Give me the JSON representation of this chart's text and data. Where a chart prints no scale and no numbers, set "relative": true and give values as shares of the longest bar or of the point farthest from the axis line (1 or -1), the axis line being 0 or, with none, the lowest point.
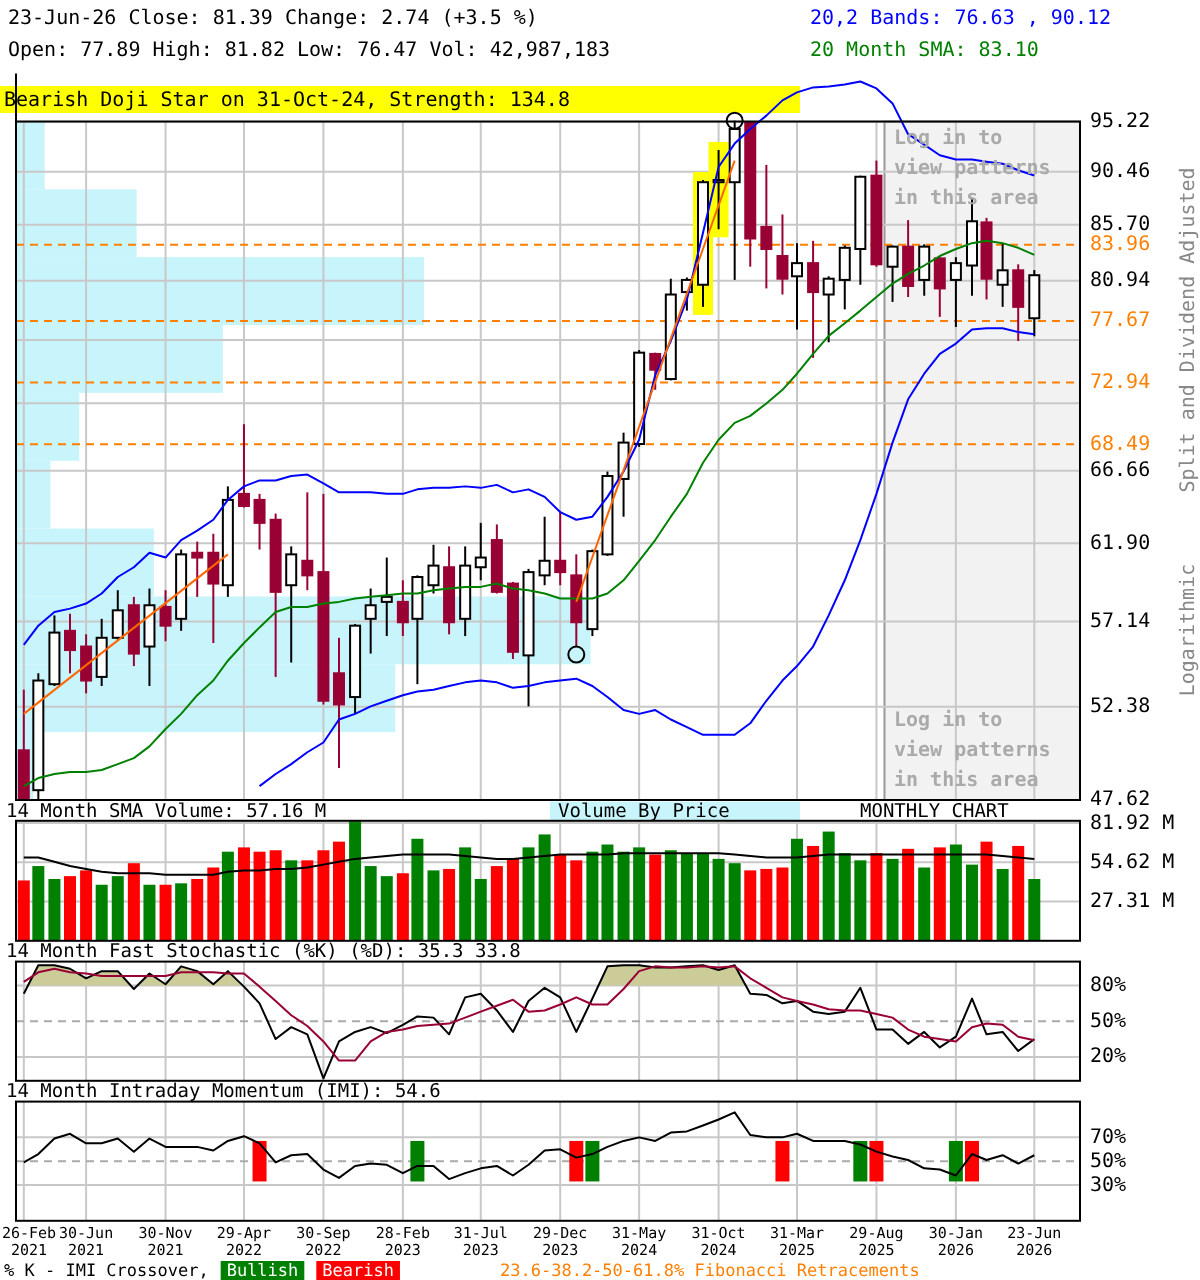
{
  "chart_data": [
    {
      "type": "candlestick",
      "title": "23-Jun-26    Close: 81.39    Change: 2.74 (+3.5 %)",
      "subtitle": "Open: 77.89    High: 81.82    Low: 76.47    Vol: 42,987,183",
      "x": [
        "2021-02",
        "2021-03",
        "2021-04",
        "2021-05",
        "2021-06",
        "2021-07",
        "2021-08",
        "2021-09",
        "2021-10",
        "2021-11",
        "2021-12",
        "2022-01",
        "2022-02",
        "2022-03",
        "2022-04",
        "2022-05",
        "2022-06",
        "2022-07",
        "2022-08",
        "2022-09",
        "2022-10",
        "2022-11",
        "2022-12",
        "2023-01",
        "2023-02",
        "2023-03",
        "2023-04",
        "2023-05",
        "2023-06",
        "2023-07",
        "2023-08",
        "2023-09",
        "2023-10",
        "2023-11",
        "2023-12",
        "2024-01",
        "2024-02",
        "2024-03",
        "2024-04",
        "2024-05",
        "2024-06",
        "2024-07",
        "2024-08",
        "2024-09",
        "2024-10",
        "2024-11",
        "2024-12",
        "2025-01",
        "2025-02",
        "2025-03",
        "2025-04",
        "2025-05",
        "2025-06",
        "2025-07",
        "2025-08",
        "2025-09",
        "2025-10",
        "2025-11",
        "2025-12",
        "2026-01",
        "2026-02",
        "2026-03",
        "2026-04",
        "2026-05",
        "2026-06"
      ],
      "ohlc": [
        [
          50.1,
          53.3,
          47.62,
          47.7
        ],
        [
          48.1,
          54.2,
          47.62,
          53.8
        ],
        [
          53.6,
          57.5,
          53.5,
          56.5
        ],
        [
          56.6,
          57.6,
          54.2,
          55.5
        ],
        [
          55.7,
          56.4,
          53.1,
          53.8
        ],
        [
          54.0,
          57.3,
          53.5,
          56.2
        ],
        [
          56.2,
          59.0,
          56.1,
          57.8
        ],
        [
          58.1,
          58.6,
          54.6,
          55.3
        ],
        [
          55.7,
          59.1,
          53.5,
          58.1
        ],
        [
          58.0,
          59.0,
          56.0,
          56.9
        ],
        [
          57.3,
          61.5,
          56.6,
          61.2
        ],
        [
          61.3,
          62.0,
          58.6,
          61.0
        ],
        [
          61.3,
          62.5,
          55.9,
          59.4
        ],
        [
          59.3,
          65.6,
          58.6,
          64.7
        ],
        [
          65.1,
          69.9,
          64.2,
          64.3
        ],
        [
          64.7,
          65.1,
          61.5,
          63.2
        ],
        [
          63.4,
          63.8,
          54.0,
          58.9
        ],
        [
          59.3,
          61.7,
          54.8,
          61.2
        ],
        [
          60.8,
          65.2,
          59.0,
          59.9
        ],
        [
          60.1,
          65.1,
          52.5,
          52.7
        ],
        [
          54.2,
          56.2,
          49.2,
          52.5
        ],
        [
          52.9,
          57.0,
          52.0,
          56.9
        ],
        [
          57.3,
          59.1,
          55.3,
          58.1
        ],
        [
          58.3,
          61.0,
          56.3,
          58.6
        ],
        [
          58.3,
          59.6,
          56.3,
          57.1
        ],
        [
          57.3,
          59.9,
          53.6,
          59.8
        ],
        [
          59.3,
          61.8,
          58.8,
          60.5
        ],
        [
          60.4,
          61.7,
          56.4,
          57.1
        ],
        [
          57.3,
          61.7,
          56.3,
          60.5
        ],
        [
          60.4,
          63.2,
          59.6,
          61.0
        ],
        [
          62.1,
          63.1,
          58.8,
          58.9
        ],
        [
          59.4,
          59.5,
          55.0,
          55.4
        ],
        [
          55.2,
          60.3,
          52.4,
          60.1
        ],
        [
          59.9,
          63.6,
          59.3,
          60.8
        ],
        [
          60.8,
          63.9,
          59.3,
          60.1
        ],
        [
          59.9,
          61.2,
          55.7,
          57.1
        ],
        [
          56.7,
          61.5,
          56.3,
          61.4
        ],
        [
          61.2,
          66.6,
          61.1,
          66.3
        ],
        [
          66.1,
          69.3,
          63.6,
          68.6
        ],
        [
          68.5,
          75.4,
          68.3,
          75.2
        ],
        [
          75.1,
          75.2,
          72.4,
          73.9
        ],
        [
          73.2,
          81.1,
          73.1,
          79.8
        ],
        [
          80.0,
          81.2,
          78.5,
          81.0
        ],
        [
          80.6,
          89.7,
          78.8,
          89.5
        ],
        [
          89.5,
          92.5,
          85.3,
          89.7
        ],
        [
          89.5,
          95.3,
          81.0,
          94.5
        ],
        [
          95.1,
          95.2,
          82.1,
          84.5
        ],
        [
          85.5,
          91.1,
          80.3,
          83.6
        ],
        [
          83.0,
          86.6,
          79.8,
          81.1
        ],
        [
          81.3,
          84.1,
          77.0,
          82.4
        ],
        [
          82.4,
          84.3,
          74.8,
          80.0
        ],
        [
          79.8,
          81.3,
          76.0,
          81.1
        ],
        [
          81.0,
          83.9,
          78.6,
          83.7
        ],
        [
          83.6,
          90.1,
          80.6,
          90.0
        ],
        [
          90.1,
          91.5,
          82.1,
          82.3
        ],
        [
          82.1,
          83.9,
          79.2,
          83.8
        ],
        [
          83.8,
          86.1,
          79.6,
          80.5
        ],
        [
          81.0,
          84.0,
          79.7,
          83.8
        ],
        [
          82.8,
          82.9,
          78.0,
          80.3
        ],
        [
          81.0,
          82.9,
          77.2,
          82.4
        ],
        [
          82.2,
          88.1,
          79.7,
          86.0
        ],
        [
          85.9,
          86.3,
          79.4,
          81.1
        ],
        [
          80.6,
          84.1,
          78.8,
          81.8
        ],
        [
          81.8,
          82.3,
          76.1,
          78.8
        ],
        [
          77.89,
          81.82,
          76.47,
          81.39
        ]
      ],
      "series": [
        {
          "type": "line",
          "name": "20,2 Bands: 76.63 , 90.12",
          "color": "#0000ff",
          "values": [
            55.8,
            56.9,
            57.7,
            57.9,
            58.2,
            58.8,
            59.8,
            60.4,
            61.3,
            61.0,
            62.1,
            62.7,
            63.4,
            64.7,
            65.6,
            66.0,
            66.0,
            66.3,
            66.4,
            65.8,
            65.2,
            65.2,
            65.2,
            65.1,
            65.1,
            65.4,
            65.5,
            65.5,
            65.6,
            65.5,
            65.7,
            65.2,
            65.4,
            64.9,
            63.9,
            63.4,
            63.6,
            64.9,
            66.6,
            68.8,
            73.5,
            76.1,
            79.4,
            85.0,
            90.9,
            93.1,
            94.5,
            95.8,
            97.3,
            98.1,
            98.6,
            98.7,
            98.9,
            99.2,
            98.5,
            97.0,
            94.0,
            93.0,
            92.0,
            91.6,
            91.6,
            91.4,
            91.2,
            90.6,
            90.12
          ]
        },
        {
          "type": "line",
          "color": "#0000ff",
          "values": [
            null,
            null,
            null,
            null,
            null,
            null,
            null,
            null,
            null,
            null,
            null,
            null,
            null,
            null,
            null,
            48.3,
            48.9,
            49.4,
            50.0,
            50.5,
            51.7,
            52.0,
            52.4,
            52.7,
            53.0,
            53.2,
            53.3,
            53.5,
            53.7,
            53.8,
            53.7,
            53.4,
            53.5,
            53.7,
            53.8,
            53.9,
            53.5,
            52.9,
            52.2,
            52.0,
            52.2,
            51.7,
            51.3,
            50.9,
            50.9,
            50.9,
            51.5,
            52.7,
            53.8,
            54.6,
            55.7,
            57.5,
            59.6,
            62.1,
            65.1,
            68.6,
            71.7,
            73.6,
            75.1,
            75.9,
            77.0,
            77.1,
            77.1,
            76.8,
            76.63
          ]
        },
        {
          "type": "line",
          "name": "20 Month SMA: 83.10",
          "color": "#008000",
          "values": [
            48.3,
            48.7,
            48.9,
            49.0,
            49.0,
            49.1,
            49.4,
            49.7,
            50.3,
            51.2,
            52.0,
            53.0,
            53.8,
            54.9,
            55.9,
            56.8,
            57.7,
            58.0,
            58.0,
            58.2,
            58.3,
            58.5,
            58.6,
            58.7,
            58.8,
            58.8,
            59.0,
            59.1,
            59.2,
            59.2,
            59.4,
            59.1,
            59.0,
            58.8,
            58.5,
            58.5,
            58.5,
            58.8,
            59.6,
            60.8,
            62.1,
            63.6,
            65.1,
            67.2,
            68.8,
            70.0,
            70.5,
            71.4,
            72.4,
            73.6,
            75.1,
            76.5,
            77.5,
            78.5,
            79.6,
            80.7,
            81.5,
            82.2,
            83.0,
            83.6,
            84.1,
            84.3,
            84.1,
            83.7,
            83.1
          ]
        },
        {
          "type": "line",
          "color": "#ff6600",
          "x": [
            "2021-02",
            "2022-03"
          ],
          "values": [
            52.0,
            61.2
          ]
        },
        {
          "type": "line",
          "color": "#ff6600",
          "x": [
            "2024-01",
            "2024-11"
          ],
          "values": [
            58.3,
            91.5
          ]
        }
      ],
      "xlim": [
        "2021-01-17",
        "2026-08-28"
      ],
      "xticks": [
        {
          "value": "2021-02",
          "label": null
        },
        {
          "value": "2021-06",
          "label": null
        },
        {
          "value": "2021-11",
          "label": null
        },
        {
          "value": "2022-04",
          "label": null
        },
        {
          "value": "2022-09",
          "label": null
        },
        {
          "value": "2023-02",
          "label": null
        },
        {
          "value": "2023-07",
          "label": null
        },
        {
          "value": "2023-12",
          "label": null
        },
        {
          "value": "2024-05",
          "label": null
        },
        {
          "value": "2024-10",
          "label": null
        },
        {
          "value": "2025-03",
          "label": null
        },
        {
          "value": "2025-08",
          "label": null
        },
        {
          "value": "2026-01",
          "label": null
        },
        {
          "value": "2026-06",
          "label": null
        }
      ],
      "ylim": [
        47.62,
        100
      ],
      "log": true,
      "yticks": [
        47.62,
        52.38,
        57.14,
        {
          "value": 61.9,
          "label": "61.90"
        },
        66.66,
        {
          "value": 71.42,
          "label": null
        },
        {
          "value": 76.18,
          "label": null
        },
        80.94,
        {
          "value": 85.7,
          "label": "85.70"
        },
        90.46,
        95.22
      ],
      "grid": true,
      "tick_labels": "y",
      "legend": "top right",
      "ref_lines": [
        {
          "axis": "y",
          "value": 83.96,
          "label": "83.96",
          "color": "#ff8000",
          "line_style": "dashed"
        },
        {
          "axis": "y",
          "value": 77.67,
          "label": "77.67",
          "color": "#ff8000",
          "line_style": "dashed"
        },
        {
          "axis": "y",
          "value": 72.94,
          "label": "72.94",
          "color": "#ff8000",
          "line_style": "dashed"
        },
        {
          "axis": "y",
          "value": 68.49,
          "label": "68.49",
          "color": "#ff8000",
          "line_style": "dashed"
        }
      ],
      "annotations": [
        "Bearish Doji Star on 31-Oct-24, Strength: 134.8",
        "Log in to view patterns in this area",
        "Log in to view patterns in this area",
        "Split and Dividend Adjusted",
        "Logarithmic",
        "23.6-38.2-50-61.8% Fibonacci Retracements"
      ]
    },
    {
      "type": "bar",
      "title": "14 Month SMA Volume: 57.16 M",
      "x": [
        "2021-02",
        "2021-03",
        "2021-04",
        "2021-05",
        "2021-06",
        "2021-07",
        "2021-08",
        "2021-09",
        "2021-10",
        "2021-11",
        "2021-12",
        "2022-01",
        "2022-02",
        "2022-03",
        "2022-04",
        "2022-05",
        "2022-06",
        "2022-07",
        "2022-08",
        "2022-09",
        "2022-10",
        "2022-11",
        "2022-12",
        "2023-01",
        "2023-02",
        "2023-03",
        "2023-04",
        "2023-05",
        "2023-06",
        "2023-07",
        "2023-08",
        "2023-09",
        "2023-10",
        "2023-11",
        "2023-12",
        "2024-01",
        "2024-02",
        "2024-03",
        "2024-04",
        "2024-05",
        "2024-06",
        "2024-07",
        "2024-08",
        "2024-09",
        "2024-10",
        "2024-11",
        "2024-12",
        "2025-01",
        "2025-02",
        "2025-03",
        "2025-04",
        "2025-05",
        "2025-06",
        "2025-07",
        "2025-08",
        "2025-09",
        "2025-10",
        "2025-11",
        "2025-12",
        "2026-01",
        "2026-02",
        "2026-03",
        "2026-04",
        "2026-05",
        "2026-06"
      ],
      "values": [
        42,
        52,
        43,
        45,
        49,
        39,
        45,
        54,
        39,
        39,
        40,
        43,
        51,
        62,
        65,
        62,
        63,
        56,
        56,
        63,
        69,
        83,
        52,
        45,
        47,
        71,
        49,
        50,
        65,
        43,
        52,
        57,
        65,
        74,
        60,
        56,
        62,
        67,
        62,
        65,
        60,
        63,
        61,
        61,
        57,
        54,
        49,
        50,
        51,
        71,
        66,
        76,
        61,
        56,
        61,
        57,
        64,
        51,
        65,
        67,
        53,
        69,
        50,
        66,
        43
      ],
      "colors": [
        "#ff0000",
        "#008000",
        "#008000",
        "#ff0000",
        "#ff0000",
        "#008000",
        "#008000",
        "#ff0000",
        "#008000",
        "#ff0000",
        "#008000",
        "#ff0000",
        "#ff0000",
        "#008000",
        "#ff0000",
        "#ff0000",
        "#ff0000",
        "#008000",
        "#ff0000",
        "#ff0000",
        "#ff0000",
        "#008000",
        "#008000",
        "#008000",
        "#ff0000",
        "#008000",
        "#008000",
        "#ff0000",
        "#008000",
        "#008000",
        "#ff0000",
        "#ff0000",
        "#008000",
        "#008000",
        "#ff0000",
        "#ff0000",
        "#008000",
        "#008000",
        "#008000",
        "#008000",
        "#ff0000",
        "#008000",
        "#008000",
        "#008000",
        "#008000",
        "#008000",
        "#ff0000",
        "#ff0000",
        "#ff0000",
        "#008000",
        "#ff0000",
        "#008000",
        "#008000",
        "#008000",
        "#ff0000",
        "#008000",
        "#ff0000",
        "#008000",
        "#ff0000",
        "#008000",
        "#008000",
        "#ff0000",
        "#008000",
        "#ff0000",
        "#008000"
      ],
      "series": [
        {
          "type": "line",
          "color": "#000000",
          "values": [
            58,
            58,
            55,
            52,
            50,
            48,
            47,
            47,
            47,
            46,
            46,
            46,
            46,
            48,
            49,
            49,
            50,
            50,
            51,
            53,
            55,
            57,
            58,
            59,
            60,
            60,
            60,
            60,
            59,
            58,
            57,
            57,
            58,
            59,
            60,
            60,
            60,
            60,
            61,
            61,
            61,
            61,
            61,
            61,
            61,
            60,
            59,
            58,
            58,
            58,
            59,
            60,
            60,
            60,
            60,
            60,
            60,
            60,
            60,
            60,
            60,
            60,
            59,
            58,
            57
          ]
        }
      ],
      "xlim": [
        "2021-01-17",
        "2026-08-28"
      ],
      "xticks": [
        {
          "value": "2021-02",
          "label": null
        },
        {
          "value": "2021-06",
          "label": null
        },
        {
          "value": "2021-11",
          "label": null
        },
        {
          "value": "2022-04",
          "label": null
        },
        {
          "value": "2022-09",
          "label": null
        },
        {
          "value": "2023-02",
          "label": null
        },
        {
          "value": "2023-07",
          "label": null
        },
        {
          "value": "2023-12",
          "label": null
        },
        {
          "value": "2024-05",
          "label": null
        },
        {
          "value": "2024-10",
          "label": null
        },
        {
          "value": "2025-03",
          "label": null
        },
        {
          "value": "2025-08",
          "label": null
        },
        {
          "value": "2026-01",
          "label": null
        },
        {
          "value": "2026-06",
          "label": null
        }
      ],
      "ylim": [
        0,
        83.5
      ],
      "yticks": [
        {
          "value": 27.31,
          "label": "27.31 M"
        },
        {
          "value": 54.62,
          "label": "54.62 M"
        },
        {
          "value": 81.92,
          "label": "81.92 M"
        }
      ],
      "grid": true,
      "tick_labels": "y",
      "annotations": [
        "Volume By Price",
        "MONTHLY CHART"
      ]
    },
    {
      "type": "line",
      "title": "14 Month Fast Stochastic (%K) (%D): 35.3  33.8",
      "x": [
        "2021-02",
        "2021-03",
        "2021-04",
        "2021-05",
        "2021-06",
        "2021-07",
        "2021-08",
        "2021-09",
        "2021-10",
        "2021-11",
        "2021-12",
        "2022-01",
        "2022-02",
        "2022-03",
        "2022-04",
        "2022-05",
        "2022-06",
        "2022-07",
        "2022-08",
        "2022-09",
        "2022-10",
        "2022-11",
        "2022-12",
        "2023-01",
        "2023-02",
        "2023-03",
        "2023-04",
        "2023-05",
        "2023-06",
        "2023-07",
        "2023-08",
        "2023-09",
        "2023-10",
        "2023-11",
        "2023-12",
        "2024-01",
        "2024-02",
        "2024-03",
        "2024-04",
        "2024-05",
        "2024-06",
        "2024-07",
        "2024-08",
        "2024-09",
        "2024-10",
        "2024-11",
        "2024-12",
        "2025-01",
        "2025-02",
        "2025-03",
        "2025-04",
        "2025-05",
        "2025-06",
        "2025-07",
        "2025-08",
        "2025-09",
        "2025-10",
        "2025-11",
        "2025-12",
        "2026-01",
        "2026-02",
        "2026-03",
        "2026-04",
        "2026-05",
        "2026-06"
      ],
      "series": [
        {
          "color": "#000000",
          "values": [
            73,
            97,
            97,
            94,
            86,
            92,
            92,
            77,
            90,
            81,
            96,
            92,
            81,
            92,
            79,
            65,
            35,
            45,
            39,
            2,
            33,
            41,
            45,
            40,
            47,
            54,
            53,
            39,
            70,
            73,
            59,
            41,
            67,
            78,
            70,
            41,
            69,
            96,
            97,
            97,
            95,
            95,
            96,
            97,
            93,
            97,
            73,
            72,
            65,
            67,
            58,
            56,
            58,
            78,
            43,
            43,
            31,
            41,
            28,
            37,
            69,
            39,
            41,
            25,
            35
          ]
        },
        {
          "color": "#990033",
          "values": [
            83,
            91,
            94,
            91,
            90,
            88,
            88,
            88,
            88,
            88,
            91,
            91,
            91,
            90,
            90,
            79,
            67,
            55,
            46,
            33,
            17,
            17,
            33,
            41,
            43,
            46,
            47,
            48,
            53,
            58,
            63,
            68,
            58,
            59,
            64,
            70,
            64,
            64,
            77,
            92,
            96,
            95,
            95,
            96,
            95,
            96,
            86,
            78,
            70,
            67,
            64,
            60,
            59,
            59,
            56,
            53,
            43,
            37,
            35,
            33,
            45,
            48,
            47,
            37,
            34
          ]
        }
      ],
      "xlim": [
        "2021-01-17",
        "2026-08-28"
      ],
      "xticks": [
        {
          "value": "2021-02",
          "label": null
        },
        {
          "value": "2021-06",
          "label": null
        },
        {
          "value": "2021-11",
          "label": null
        },
        {
          "value": "2022-04",
          "label": null
        },
        {
          "value": "2022-09",
          "label": null
        },
        {
          "value": "2023-02",
          "label": null
        },
        {
          "value": "2023-07",
          "label": null
        },
        {
          "value": "2023-12",
          "label": null
        },
        {
          "value": "2024-05",
          "label": null
        },
        {
          "value": "2024-10",
          "label": null
        },
        {
          "value": "2025-03",
          "label": null
        },
        {
          "value": "2025-08",
          "label": null
        },
        {
          "value": "2026-01",
          "label": null
        },
        {
          "value": "2026-06",
          "label": null
        }
      ],
      "ylim": [
        0,
        100
      ],
      "yticks": [
        {
          "value": 20,
          "label": "20%"
        },
        {
          "value": 50,
          "label": "50%"
        },
        {
          "value": 80,
          "label": "80%"
        }
      ],
      "grid": true,
      "tick_labels": "y",
      "ref_lines": [
        {
          "axis": "y",
          "value": 50,
          "color": "#aaaaaa",
          "line_style": "dashed"
        }
      ],
      "bands": [
        {
          "axis": "y",
          "from": 80,
          "to": 100,
          "color": "#cccc99"
        }
      ]
    },
    {
      "type": "line",
      "title": "14 Month Intraday Momentum (IMI): 54.6",
      "legend_title": "% K - IMI Crossover,",
      "x": [
        "2021-02",
        "2021-03",
        "2021-04",
        "2021-05",
        "2021-06",
        "2021-07",
        "2021-08",
        "2021-09",
        "2021-10",
        "2021-11",
        "2021-12",
        "2022-01",
        "2022-02",
        "2022-03",
        "2022-04",
        "2022-05",
        "2022-06",
        "2022-07",
        "2022-08",
        "2022-09",
        "2022-10",
        "2022-11",
        "2022-12",
        "2023-01",
        "2023-02",
        "2023-03",
        "2023-04",
        "2023-05",
        "2023-06",
        "2023-07",
        "2023-08",
        "2023-09",
        "2023-10",
        "2023-11",
        "2023-12",
        "2024-01",
        "2024-02",
        "2024-03",
        "2024-04",
        "2024-05",
        "2024-06",
        "2024-07",
        "2024-08",
        "2024-09",
        "2024-10",
        "2024-11",
        "2024-12",
        "2025-01",
        "2025-02",
        "2025-03",
        "2025-04",
        "2025-05",
        "2025-06",
        "2025-07",
        "2025-08",
        "2025-09",
        "2025-10",
        "2025-11",
        "2025-12",
        "2026-01",
        "2026-02",
        "2026-03",
        "2026-04",
        "2026-05",
        "2026-06"
      ],
      "series": [
        {
          "type": "bar",
          "name": "Bullish",
          "color": "#008000",
          "x": [
            "2023-03",
            "2024-02",
            "2025-07",
            "2026-01"
          ],
          "base": [
            33,
            33,
            33,
            33
          ],
          "values": [
            34,
            34,
            34,
            34
          ]
        },
        {
          "type": "bar",
          "name": "Bearish",
          "color": "#ff0000",
          "x": [
            "2022-05",
            "2024-01",
            "2025-02",
            "2025-08",
            "2026-02"
          ],
          "base": [
            33,
            33,
            33,
            33,
            33
          ],
          "values": [
            34,
            34,
            34,
            34,
            34
          ]
        },
        {
          "type": "line",
          "color": "#000000",
          "values": [
            49,
            56,
            69,
            73,
            65,
            65,
            69,
            58,
            69,
            62,
            62,
            62,
            59,
            67,
            71,
            65,
            49,
            55,
            56,
            43,
            36,
            46,
            48,
            47,
            40,
            46,
            46,
            35,
            40,
            44,
            46,
            38,
            47,
            59,
            60,
            53,
            56,
            62,
            67,
            70,
            67,
            74,
            75,
            80,
            85,
            91,
            72,
            70,
            70,
            73,
            67,
            67,
            67,
            64,
            58,
            54,
            51,
            44,
            43,
            38,
            56,
            51,
            55,
            48,
            55
          ]
        }
      ],
      "xlim": [
        "2021-01-17",
        "2026-08-28"
      ],
      "xticks": [
        {
          "value": "2021-02",
          "label": "26-Feb 2021"
        },
        {
          "value": "2021-06",
          "label": "30-Jun 2021"
        },
        {
          "value": "2021-11",
          "label": "30-Nov 2021"
        },
        {
          "value": "2022-04",
          "label": "29-Apr 2022"
        },
        {
          "value": "2022-09",
          "label": "30-Sep 2022"
        },
        {
          "value": "2023-02",
          "label": "28-Feb 2023"
        },
        {
          "value": "2023-07",
          "label": "31-Jul 2023"
        },
        {
          "value": "2023-12",
          "label": "29-Dec 2023"
        },
        {
          "value": "2024-05",
          "label": "31-May 2024"
        },
        {
          "value": "2024-10",
          "label": "31-Oct 2024"
        },
        {
          "value": "2025-03",
          "label": "31-Mar 2025"
        },
        {
          "value": "2025-08",
          "label": "29-Aug 2025"
        },
        {
          "value": "2026-01",
          "label": "30-Jan 2026"
        },
        {
          "value": "2026-06",
          "label": "23-Jun 2026"
        }
      ],
      "ylim": [
        0,
        100
      ],
      "yticks": [
        {
          "value": 30,
          "label": "30%"
        },
        {
          "value": 50,
          "label": "50%"
        },
        {
          "value": 70,
          "label": "70%"
        }
      ],
      "grid": true,
      "legend": "bottom",
      "ref_lines": [
        {
          "axis": "y",
          "value": 50,
          "color": "#aaaaaa",
          "line_style": "dashed"
        }
      ]
    },
    {
      "type": "bar",
      "orientation": "horizontal",
      "relative": true,
      "color": "#c8f4fc",
      "categories": [
        null,
        null,
        null,
        null,
        null,
        null,
        null,
        null,
        null,
        null
      ],
      "values": [
        0.05,
        0.21,
        0.71,
        0.36,
        0.11,
        0.06,
        0.24,
        1,
        0.66,
        0.03
      ]
    }
  ]
}
